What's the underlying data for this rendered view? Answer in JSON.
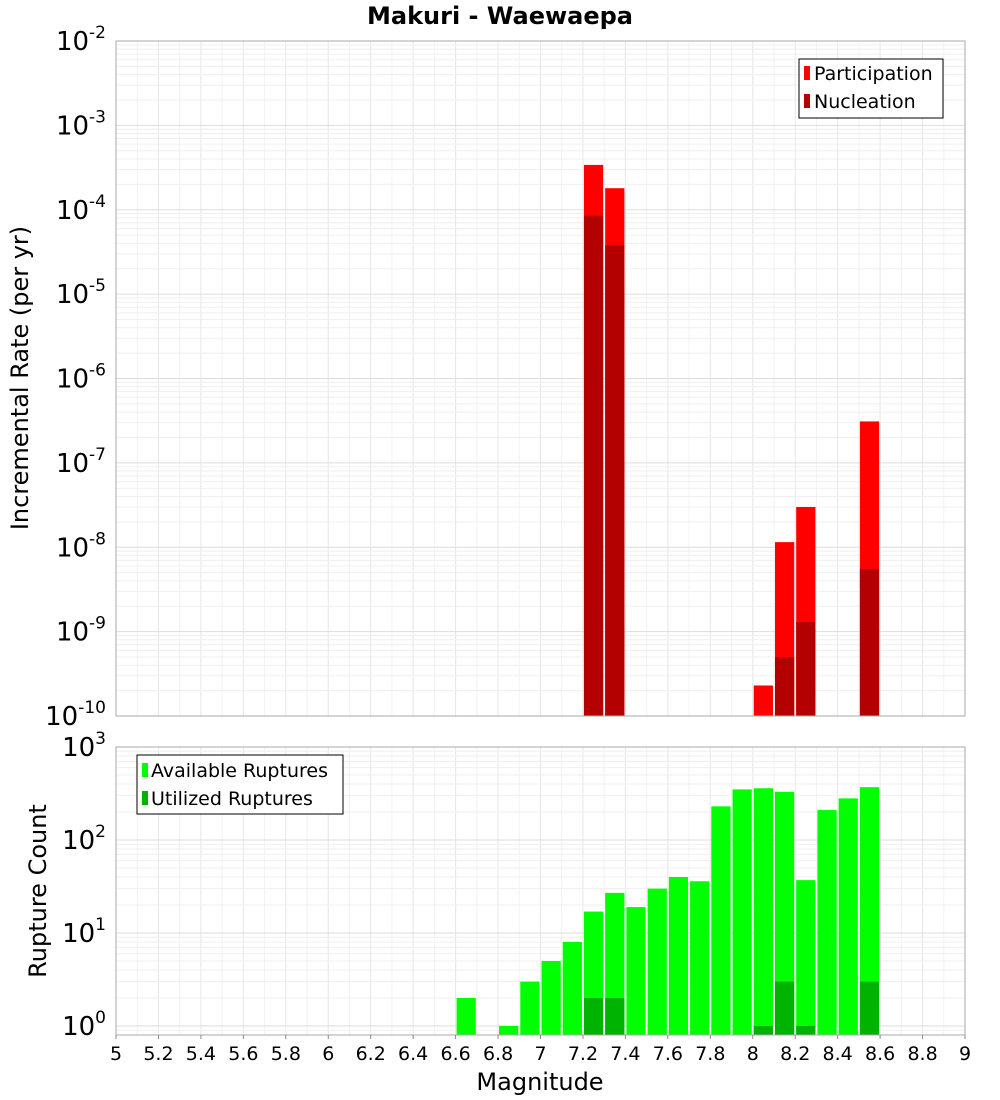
{
  "chart_data": [
    {
      "type": "bar",
      "title": "Makuri - Waewaepa",
      "xlabel": "",
      "ylabel": "Incremental Rate (per yr)",
      "yscale": "log",
      "ylim": [
        1e-10,
        0.01
      ],
      "xlim": [
        5,
        9
      ],
      "bar_width": 0.1,
      "grid": true,
      "legend_position": "top-right",
      "series": [
        {
          "name": "Participation",
          "color": "#ff0000",
          "x": [
            7.25,
            7.35,
            8.05,
            8.15,
            8.25,
            8.55
          ],
          "values": [
            0.00034,
            0.00018,
            2.3e-10,
            1.15e-08,
            3e-08,
            3.1e-07
          ]
        },
        {
          "name": "Nucleation",
          "color": "#b30000",
          "x": [
            7.25,
            7.35,
            8.15,
            8.25,
            8.55
          ],
          "values": [
            8.5e-05,
            3.8e-05,
            5e-10,
            1.3e-09,
            5.5e-09
          ]
        }
      ]
    },
    {
      "type": "bar",
      "xlabel": "Magnitude",
      "ylabel": "Rupture Count",
      "yscale": "log",
      "ylim": [
        0.8,
        1000
      ],
      "xlim": [
        5,
        9
      ],
      "bar_width": 0.1,
      "grid": true,
      "legend_position": "top-left",
      "series": [
        {
          "name": "Available Ruptures",
          "color": "#00ff00",
          "x": [
            6.65,
            6.85,
            6.95,
            7.05,
            7.15,
            7.25,
            7.35,
            7.45,
            7.55,
            7.65,
            7.75,
            7.85,
            7.95,
            8.05,
            8.15,
            8.25,
            8.35,
            8.45,
            8.55
          ],
          "values": [
            2,
            1,
            3,
            5,
            8,
            17,
            27,
            19,
            30,
            40,
            36,
            230,
            350,
            360,
            330,
            37,
            210,
            280,
            370
          ]
        },
        {
          "name": "Utilized Ruptures",
          "color": "#00b300",
          "x": [
            7.25,
            7.35,
            8.05,
            8.15,
            8.25,
            8.55
          ],
          "values": [
            2,
            2,
            1,
            3,
            1,
            3
          ]
        }
      ]
    }
  ],
  "x_ticks": [
    "5",
    "5.2",
    "5.4",
    "5.6",
    "5.8",
    "6",
    "6.2",
    "6.4",
    "6.6",
    "6.8",
    "7",
    "7.2",
    "7.4",
    "7.6",
    "7.8",
    "8",
    "8.2",
    "8.4",
    "8.6",
    "8.8",
    "9"
  ],
  "top_y_ticks": [
    {
      "base": "10",
      "exp": "-10",
      "value": 1e-10
    },
    {
      "base": "10",
      "exp": "-9",
      "value": 1e-09
    },
    {
      "base": "10",
      "exp": "-8",
      "value": 1e-08
    },
    {
      "base": "10",
      "exp": "-7",
      "value": 1e-07
    },
    {
      "base": "10",
      "exp": "-6",
      "value": 1e-06
    },
    {
      "base": "10",
      "exp": "-5",
      "value": 1e-05
    },
    {
      "base": "10",
      "exp": "-4",
      "value": 0.0001
    },
    {
      "base": "10",
      "exp": "-3",
      "value": 0.001
    },
    {
      "base": "10",
      "exp": "-2",
      "value": 0.01
    }
  ],
  "bottom_y_ticks": [
    {
      "base": "10",
      "exp": "0",
      "value": 1
    },
    {
      "base": "10",
      "exp": "1",
      "value": 10
    },
    {
      "base": "10",
      "exp": "2",
      "value": 100
    },
    {
      "base": "10",
      "exp": "3",
      "value": 1000
    }
  ]
}
